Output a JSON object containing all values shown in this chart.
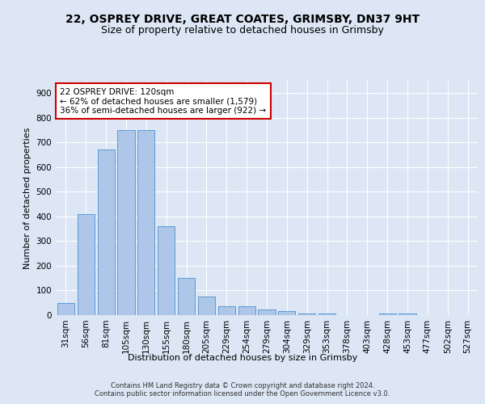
{
  "title_line1": "22, OSPREY DRIVE, GREAT COATES, GRIMSBY, DN37 9HT",
  "title_line2": "Size of property relative to detached houses in Grimsby",
  "xlabel": "Distribution of detached houses by size in Grimsby",
  "ylabel": "Number of detached properties",
  "footnote": "Contains HM Land Registry data © Crown copyright and database right 2024.\nContains public sector information licensed under the Open Government Licence v3.0.",
  "bar_labels": [
    "31sqm",
    "56sqm",
    "81sqm",
    "105sqm",
    "130sqm",
    "155sqm",
    "180sqm",
    "205sqm",
    "229sqm",
    "254sqm",
    "279sqm",
    "304sqm",
    "329sqm",
    "353sqm",
    "378sqm",
    "403sqm",
    "428sqm",
    "453sqm",
    "477sqm",
    "502sqm",
    "527sqm"
  ],
  "bar_values": [
    50,
    410,
    670,
    750,
    750,
    360,
    150,
    75,
    35,
    35,
    22,
    17,
    8,
    8,
    0,
    0,
    8,
    8,
    0,
    0,
    0
  ],
  "bar_color": "#aec6e8",
  "bar_edge_color": "#5b9bd5",
  "annotation_text": "22 OSPREY DRIVE: 120sqm\n← 62% of detached houses are smaller (1,579)\n36% of semi-detached houses are larger (922) →",
  "annotation_box_color": "#ffffff",
  "annotation_box_edge": "#cc0000",
  "ylim": [
    0,
    950
  ],
  "yticks": [
    0,
    100,
    200,
    300,
    400,
    500,
    600,
    700,
    800,
    900
  ],
  "bg_color": "#dce6f5",
  "plot_bg_color": "#dce6f5",
  "title_fontsize": 10,
  "subtitle_fontsize": 9,
  "axis_fontsize": 8,
  "tick_fontsize": 7.5
}
